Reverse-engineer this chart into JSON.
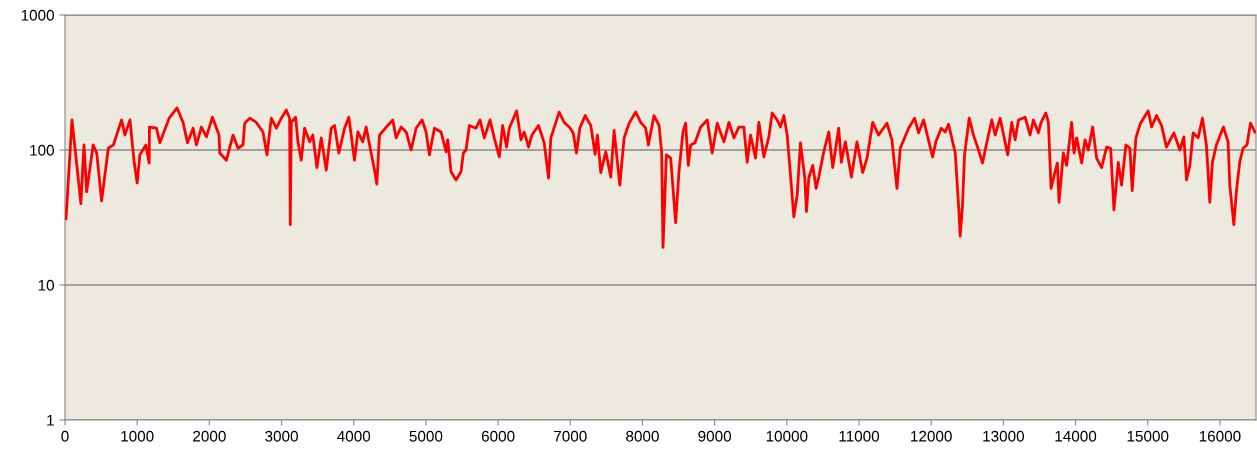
{
  "chart_data": {
    "type": "line",
    "log": "y",
    "grid": "y",
    "marker": "none",
    "line_style": "solid",
    "xlim": [
      0,
      16500
    ],
    "xticks": [
      0,
      1000,
      2000,
      3000,
      4000,
      5000,
      6000,
      7000,
      8000,
      9000,
      10000,
      11000,
      12000,
      13000,
      14000,
      15000,
      16000
    ],
    "ylim": [
      1,
      1000
    ],
    "yticks": [
      1,
      10,
      100,
      1000
    ],
    "series": [
      {
        "color": "#ff0000",
        "x": [
          14,
          97,
          220,
          263,
          300,
          390,
          440,
          507,
          600,
          670,
          784,
          830,
          900,
          955,
          1000,
          1037,
          1120,
          1166,
          1170,
          1268,
          1314,
          1443,
          1553,
          1636,
          1697,
          1775,
          1821,
          1890,
          1959,
          2042,
          2134,
          2144,
          2236,
          2328,
          2397,
          2466,
          2490,
          2559,
          2651,
          2743,
          2798,
          2858,
          2928,
          2997,
          3066,
          3112,
          3121,
          3135,
          3195,
          3227,
          3273,
          3320,
          3389,
          3434,
          3490,
          3550,
          3619,
          3688,
          3734,
          3794,
          3873,
          3932,
          4011,
          4057,
          4126,
          4172,
          4241,
          4288,
          4320,
          4357,
          4472,
          4541,
          4587,
          4657,
          4726,
          4795,
          4864,
          4947,
          5003,
          5048,
          5118,
          5210,
          5279,
          5302,
          5348,
          5417,
          5486,
          5519,
          5556,
          5602,
          5694,
          5750,
          5809,
          5888,
          5947,
          6017,
          6063,
          6118,
          6155,
          6257,
          6317,
          6362,
          6422,
          6468,
          6560,
          6639,
          6699,
          6731,
          6846,
          6916,
          6985,
          7040,
          7086,
          7132,
          7206,
          7284,
          7344,
          7376,
          7423,
          7492,
          7561,
          7607,
          7686,
          7746,
          7815,
          7907,
          7976,
          8045,
          8082,
          8160,
          8230,
          8266,
          8285,
          8331,
          8391,
          8460,
          8506,
          8562,
          8598,
          8635,
          8668,
          8728,
          8806,
          8898,
          8967,
          9036,
          9129,
          9198,
          9267,
          9336,
          9405,
          9451,
          9498,
          9567,
          9613,
          9682,
          9751,
          9797,
          9866,
          9912,
          9959,
          10005,
          10051,
          10097,
          10143,
          10189,
          10249,
          10272,
          10304,
          10360,
          10405,
          10443,
          10512,
          10581,
          10636,
          10719,
          10756,
          10811,
          10895,
          10972,
          11051,
          11111,
          11190,
          11272,
          11387,
          11456,
          11526,
          11572,
          11687,
          11770,
          11826,
          11895,
          12019,
          12065,
          12139,
          12195,
          12241,
          12333,
          12379,
          12402,
          12434,
          12462,
          12527,
          12586,
          12656,
          12711,
          12770,
          12840,
          12886,
          12955,
          13061,
          13116,
          13163,
          13209,
          13301,
          13370,
          13416,
          13485,
          13523,
          13587,
          13624,
          13661,
          13716,
          13748,
          13771,
          13831,
          13877,
          13946,
          13979,
          14016,
          14085,
          14131,
          14177,
          14237,
          14292,
          14361,
          14430,
          14486,
          14532,
          14592,
          14638,
          14698,
          14753,
          14785,
          14836,
          14900,
          15007,
          15053,
          15122,
          15191,
          15260,
          15362,
          15445,
          15501,
          15537,
          15584,
          15629,
          15698,
          15758,
          15813,
          15860,
          15896,
          15951,
          16048,
          16113,
          16137,
          16193,
          16228,
          16274,
          16321,
          16375,
          16423,
          16484
        ],
        "values": [
          31,
          167,
          40,
          109,
          49,
          109,
          95,
          42,
          103,
          109,
          167,
          129,
          167,
          84,
          57,
          92,
          109,
          80,
          148,
          145,
          113,
          172,
          205,
          160,
          113,
          145,
          109,
          148,
          125,
          175,
          129,
          95,
          84,
          129,
          103,
          109,
          158,
          172,
          160,
          136,
          92,
          172,
          145,
          172,
          198,
          172,
          28,
          160,
          175,
          115,
          84,
          145,
          115,
          129,
          74,
          123,
          71,
          145,
          152,
          95,
          145,
          175,
          84,
          136,
          115,
          148,
          95,
          71,
          56,
          129,
          152,
          167,
          123,
          148,
          136,
          100,
          145,
          167,
          136,
          92,
          145,
          136,
          97,
          119,
          69,
          60,
          69,
          95,
          100,
          152,
          145,
          167,
          123,
          167,
          123,
          89,
          152,
          105,
          145,
          195,
          119,
          136,
          105,
          129,
          152,
          113,
          62,
          123,
          191,
          160,
          148,
          134,
          95,
          145,
          180,
          152,
          93,
          129,
          68,
          97,
          63,
          140,
          55,
          123,
          158,
          191,
          160,
          145,
          109,
          180,
          152,
          97,
          19,
          92,
          87,
          29,
          69,
          136,
          158,
          77,
          109,
          113,
          148,
          167,
          95,
          158,
          115,
          160,
          123,
          148,
          148,
          81,
          129,
          87,
          160,
          89,
          125,
          188,
          167,
          148,
          180,
          129,
          65,
          32,
          46,
          113,
          62,
          35,
          62,
          77,
          52,
          63,
          97,
          136,
          74,
          145,
          81,
          115,
          63,
          115,
          68,
          87,
          160,
          129,
          158,
          119,
          52,
          103,
          145,
          172,
          134,
          167,
          89,
          115,
          145,
          136,
          155,
          95,
          39,
          23,
          39,
          92,
          172,
          129,
          100,
          80,
          113,
          167,
          129,
          172,
          92,
          160,
          119,
          167,
          175,
          129,
          167,
          134,
          160,
          188,
          160,
          52,
          69,
          80,
          41,
          95,
          77,
          160,
          95,
          123,
          80,
          119,
          100,
          148,
          87,
          74,
          105,
          103,
          36,
          81,
          55,
          109,
          103,
          50,
          123,
          158,
          195,
          148,
          180,
          152,
          105,
          134,
          100,
          125,
          60,
          77,
          134,
          123,
          172,
          109,
          41,
          81,
          109,
          148,
          115,
          55,
          28,
          49,
          81,
          103,
          109,
          158,
          136
        ]
      }
    ]
  }
}
